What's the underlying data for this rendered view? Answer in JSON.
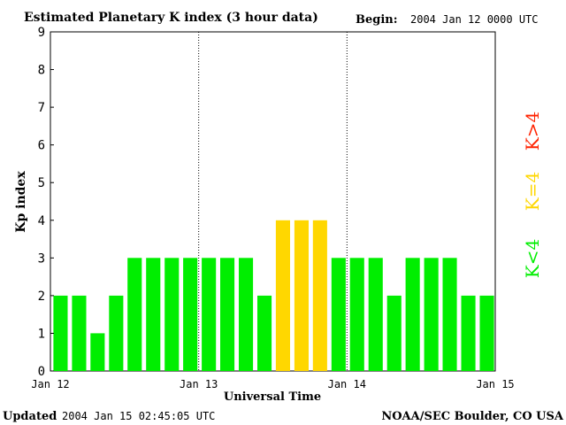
{
  "chart_data": {
    "type": "bar",
    "title": "Estimated Planetary K index (3 hour data)",
    "begin_label": "Begin:",
    "begin_value": "2004 Jan 12 0000 UTC",
    "ylabel": "Kp index",
    "xlabel": "Universal Time",
    "ylim": [
      0,
      9
    ],
    "yticks": [
      "0",
      "1",
      "2",
      "3",
      "4",
      "5",
      "6",
      "7",
      "8",
      "9"
    ],
    "x_ticks": [
      "Jan 12",
      "Jan 13",
      "Jan 14",
      "Jan 15"
    ],
    "day_dividers": [
      1,
      2
    ],
    "interval_hours": 3,
    "values": [
      2,
      2,
      1,
      2,
      3,
      3,
      3,
      3,
      3,
      3,
      3,
      2,
      4,
      4,
      4,
      3,
      3,
      3,
      2,
      3,
      3,
      3,
      2,
      2
    ],
    "legend": [
      {
        "label": "K<4",
        "color": "#00ee00"
      },
      {
        "label": "K=4",
        "color": "#ffd700"
      },
      {
        "label": "K>4",
        "color": "#ff2200"
      }
    ],
    "grid": false,
    "legend_placement": "right"
  },
  "footer": {
    "updated_label": "Updated",
    "updated_value": "2004 Jan 15 02:45:05 UTC",
    "credit": "NOAA/SEC Boulder, CO USA"
  }
}
